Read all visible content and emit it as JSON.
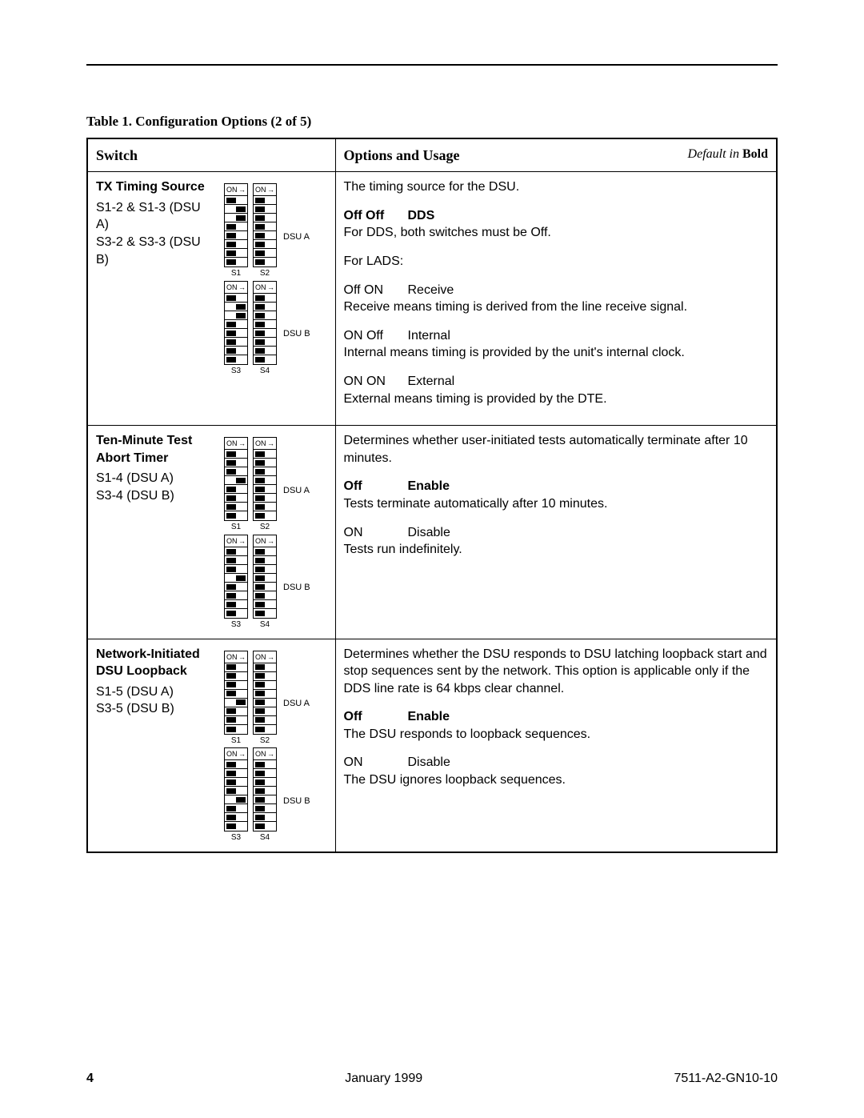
{
  "caption": "Table 1.   Configuration Options (2 of 5)",
  "header": {
    "col1": "Switch",
    "col2": "Options and Usage",
    "default_note_prefix": "Default in ",
    "default_note_bold": "Bold"
  },
  "rows": [
    {
      "switch_title": "TX Timing Source",
      "switch_sub1": "S1-2 & S1-3 (DSU A)",
      "switch_sub2": "S3-2 & S3-3 (DSU B)",
      "dipA": {
        "s1": [
          0,
          1,
          1,
          0,
          0,
          0,
          0,
          0
        ],
        "s2": [
          0,
          0,
          0,
          0,
          0,
          0,
          0,
          0
        ],
        "labelA": "S1",
        "labelB": "S2",
        "dsu": "DSU A"
      },
      "dipB": {
        "s1": [
          0,
          1,
          1,
          0,
          0,
          0,
          0,
          0
        ],
        "s2": [
          0,
          0,
          0,
          0,
          0,
          0,
          0,
          0
        ],
        "labelA": "S3",
        "labelB": "S4",
        "dsu": "DSU B"
      },
      "usage_intro": "The timing source for the DSU.",
      "opts": [
        {
          "c1": "Off Off",
          "c2": "DDS",
          "bold": true,
          "desc": "For DDS, both switches must be Off."
        },
        {
          "plain": "For LADS:"
        },
        {
          "c1": "Off ON",
          "c2": "Receive",
          "desc": "Receive means timing is derived from the line receive signal."
        },
        {
          "c1": "ON Off",
          "c2": "Internal",
          "desc": "Internal means timing is provided by the unit's internal clock."
        },
        {
          "c1": "ON ON",
          "c2": "External",
          "desc": "External means timing is provided by the DTE."
        }
      ]
    },
    {
      "switch_title": "Ten-Minute Test Abort Timer",
      "switch_sub1": "S1-4 (DSU A)",
      "switch_sub2": "S3-4 (DSU B)",
      "dipA": {
        "s1": [
          0,
          0,
          0,
          1,
          0,
          0,
          0,
          0
        ],
        "s2": [
          0,
          0,
          0,
          0,
          0,
          0,
          0,
          0
        ],
        "labelA": "S1",
        "labelB": "S2",
        "dsu": "DSU A"
      },
      "dipB": {
        "s1": [
          0,
          0,
          0,
          1,
          0,
          0,
          0,
          0
        ],
        "s2": [
          0,
          0,
          0,
          0,
          0,
          0,
          0,
          0
        ],
        "labelA": "S3",
        "labelB": "S4",
        "dsu": "DSU B"
      },
      "usage_intro": "Determines whether user-initiated tests automatically terminate after 10 minutes.",
      "opts": [
        {
          "c1": "Off",
          "c2": "Enable",
          "bold": true,
          "desc": "Tests terminate automatically after 10 minutes."
        },
        {
          "c1": "ON",
          "c2": "Disable",
          "desc": "Tests run indefinitely."
        }
      ]
    },
    {
      "switch_title": "Network-Initiated DSU Loopback",
      "switch_sub1": "S1-5 (DSU A)",
      "switch_sub2": "S3-5 (DSU B)",
      "dipA": {
        "s1": [
          0,
          0,
          0,
          0,
          1,
          0,
          0,
          0
        ],
        "s2": [
          0,
          0,
          0,
          0,
          0,
          0,
          0,
          0
        ],
        "labelA": "S1",
        "labelB": "S2",
        "dsu": "DSU A"
      },
      "dipB": {
        "s1": [
          0,
          0,
          0,
          0,
          1,
          0,
          0,
          0
        ],
        "s2": [
          0,
          0,
          0,
          0,
          0,
          0,
          0,
          0
        ],
        "labelA": "S3",
        "labelB": "S4",
        "dsu": "DSU B"
      },
      "usage_intro": "Determines whether the DSU responds to DSU latching loopback start and stop sequences sent by the network. This option is applicable only if the DDS line rate is 64 kbps clear channel.",
      "opts": [
        {
          "c1": "Off",
          "c2": "Enable",
          "bold": true,
          "desc": "The DSU responds to loopback sequences."
        },
        {
          "c1": "ON",
          "c2": "Disable",
          "desc": "The DSU ignores loopback sequences."
        }
      ]
    }
  ],
  "footer": {
    "page": "4",
    "date": "January 1999",
    "docnum": "7511-A2-GN10-10"
  }
}
